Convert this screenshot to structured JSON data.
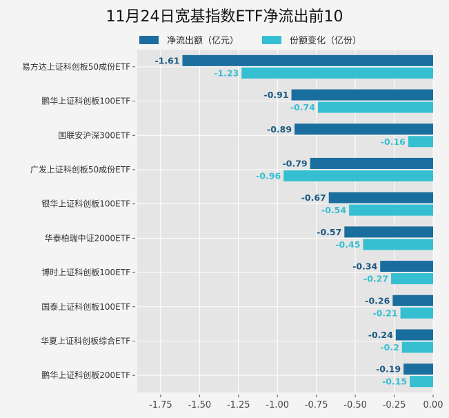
{
  "chart_data": {
    "type": "bar",
    "orientation": "horizontal",
    "title": "11月24日宽基指数ETF净流出前10",
    "categories": [
      "易方达上证科创板50成份ETF",
      "鹏华上证科创板100ETF",
      "国联安沪深300ETF",
      "广发上证科创板50成份ETF",
      "银华上证科创板100ETF",
      "华泰柏瑞中证2000ETF",
      "博时上证科创板100ETF",
      "国泰上证科创板100ETF",
      "华夏上证科创板综合ETF",
      "鹏华上证科创板200ETF"
    ],
    "series": [
      {
        "name": "净流出额（亿元）",
        "color": "#1a6e9e",
        "values": [
          -1.61,
          -0.91,
          -0.89,
          -0.79,
          -0.67,
          -0.57,
          -0.34,
          -0.26,
          -0.24,
          -0.19
        ]
      },
      {
        "name": "份额变化（亿份）",
        "color": "#36bfd1",
        "values": [
          -1.23,
          -0.74,
          -0.16,
          -0.96,
          -0.54,
          -0.45,
          -0.27,
          -0.21,
          -0.2,
          -0.15
        ]
      }
    ],
    "xticks": [
      "-1.75",
      "-1.50",
      "-1.25",
      "-1.00",
      "-0.75",
      "-0.50",
      "-0.25",
      "0.00"
    ],
    "xtick_values": [
      -1.75,
      -1.5,
      -1.25,
      -1.0,
      -0.75,
      -0.5,
      -0.25,
      0
    ],
    "xlim": [
      -1.9,
      0
    ],
    "xlabel": "",
    "ylabel": "",
    "grid": true,
    "legend_position": "top"
  }
}
